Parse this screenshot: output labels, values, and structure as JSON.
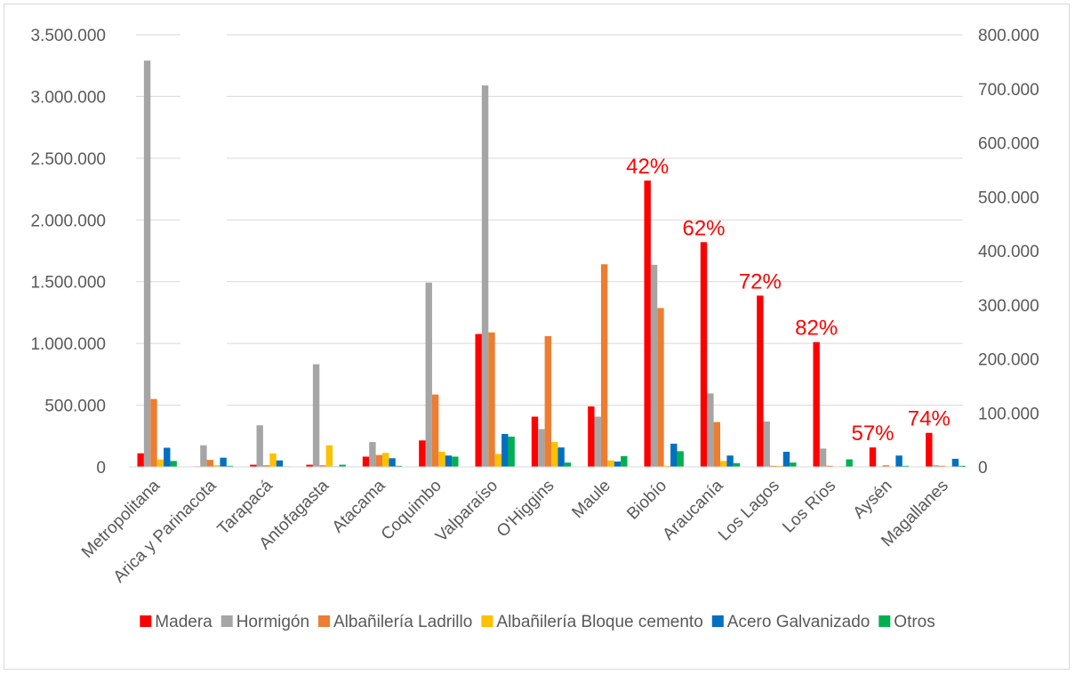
{
  "chart_data": {
    "type": "bar",
    "title": "",
    "xlabel": "",
    "ylabel": "",
    "categories": [
      "Metropolitana",
      "Arica y Parinacota",
      "Tarapacá",
      "Antofagasta",
      "Atacama",
      "Coquimbo",
      "Valparaíso",
      "O'Higgins",
      "Maule",
      "Biobío",
      "Araucanía",
      "Los Lagos",
      "Los Ríos",
      "Aysén",
      "Magallanes"
    ],
    "left_axis": {
      "ylim": [
        0,
        3500000
      ],
      "ticks": [
        "0",
        "500.000",
        "1.000.000",
        "1.500.000",
        "2.000.000",
        "2.500.000",
        "3.000.000",
        "3.500.000"
      ],
      "applies_to": [
        "Metropolitana"
      ]
    },
    "right_axis": {
      "ylim": [
        0,
        800000
      ],
      "ticks": [
        "0",
        "100.000",
        "200.000",
        "300.000",
        "400.000",
        "500.000",
        "600.000",
        "700.000",
        "800.000"
      ],
      "applies_to": [
        "Arica y Parinacota",
        "Tarapacá",
        "Antofagasta",
        "Atacama",
        "Coquimbo",
        "Valparaíso",
        "O'Higgins",
        "Maule",
        "Biobío",
        "Araucanía",
        "Los Lagos",
        "Los Ríos",
        "Aysén",
        "Magallanes"
      ]
    },
    "grid": true,
    "legend_position": "bottom",
    "series": [
      {
        "name": "Madera",
        "color": "#ff0000",
        "values": [
          110000,
          1000,
          4000,
          4000,
          19000,
          49000,
          246000,
          93000,
          112000,
          530000,
          416000,
          317000,
          231000,
          36000,
          63000
        ]
      },
      {
        "name": "Hormigón",
        "color": "#a5a5a5",
        "values": [
          3290000,
          40000,
          77000,
          190000,
          46000,
          341000,
          706000,
          70000,
          93000,
          374000,
          136000,
          84000,
          34000,
          1000,
          3000
        ]
      },
      {
        "name": "Albañilería Ladrillo",
        "color": "#ed7d31",
        "values": [
          550000,
          13000,
          3000,
          3000,
          22000,
          134000,
          249000,
          242000,
          375000,
          294000,
          83000,
          2000,
          2000,
          3000,
          2000
        ]
      },
      {
        "name": "Albañilería Bloque cemento",
        "color": "#ffc000",
        "values": [
          60000,
          3000,
          25000,
          40000,
          26000,
          28000,
          24000,
          46000,
          12000,
          2000,
          11000,
          2000,
          1000,
          1000,
          1000
        ]
      },
      {
        "name": "Acero Galvanizado",
        "color": "#0070c0",
        "values": [
          155000,
          17000,
          12000,
          1000,
          16000,
          21000,
          61000,
          36000,
          10000,
          43000,
          21000,
          28000,
          1000,
          21000,
          15000
        ]
      },
      {
        "name": "Otros",
        "color": "#00b050",
        "values": [
          48000,
          2000,
          1000,
          4000,
          2000,
          19000,
          56000,
          8000,
          20000,
          29000,
          7000,
          8000,
          14000,
          2000,
          2000
        ]
      }
    ],
    "annotations": [
      {
        "category": "Biobío",
        "text": "42%"
      },
      {
        "category": "Araucanía",
        "text": "62%"
      },
      {
        "category": "Los Lagos",
        "text": "72%"
      },
      {
        "category": "Los Ríos",
        "text": "82%"
      },
      {
        "category": "Aysén",
        "text": "57%"
      },
      {
        "category": "Magallanes",
        "text": "74%"
      }
    ]
  }
}
